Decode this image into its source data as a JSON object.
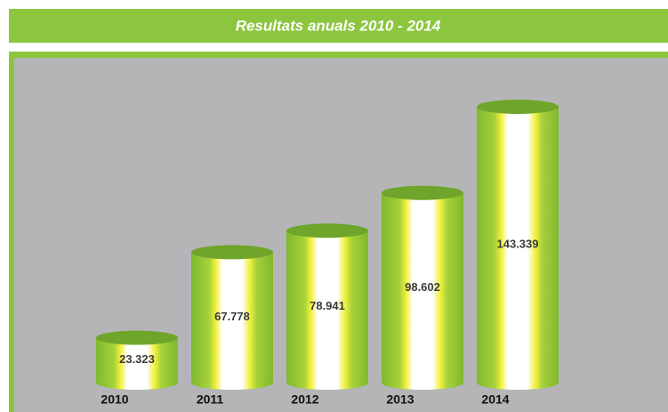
{
  "chart_data": {
    "type": "bar",
    "title": "Resultats anuals 2010 - 2014",
    "categories": [
      "2010",
      "2011",
      "2012",
      "2013",
      "2014"
    ],
    "values": [
      23323,
      67778,
      78941,
      98602,
      143339
    ],
    "value_labels": [
      "23.323",
      "67.778",
      "78.941",
      "98.602",
      "143.339"
    ],
    "color": "#8cc63f"
  }
}
